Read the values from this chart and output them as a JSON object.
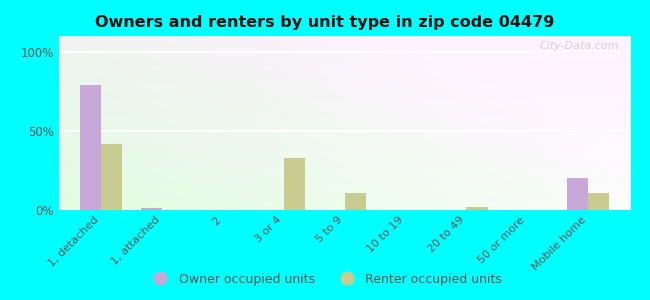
{
  "title": "Owners and renters by unit type in zip code 04479",
  "categories": [
    "1, detached",
    "1, attached",
    "2",
    "3 or 4",
    "5 to 9",
    "10 to 19",
    "20 to 49",
    "50 or more",
    "Mobile home"
  ],
  "owner_values": [
    79,
    1,
    0,
    0,
    0,
    0,
    0,
    0,
    20
  ],
  "renter_values": [
    42,
    0,
    0,
    33,
    11,
    0,
    2,
    0,
    11
  ],
  "owner_color": "#c8a8d8",
  "renter_color": "#c8cc90",
  "bg_color": "#00ffff",
  "yticks": [
    0,
    50,
    100
  ],
  "ylim": [
    0,
    110
  ],
  "bar_width": 0.35,
  "watermark": "City-Data.com",
  "grad_left": "#c8e8c0",
  "grad_right": "#f0fff0"
}
